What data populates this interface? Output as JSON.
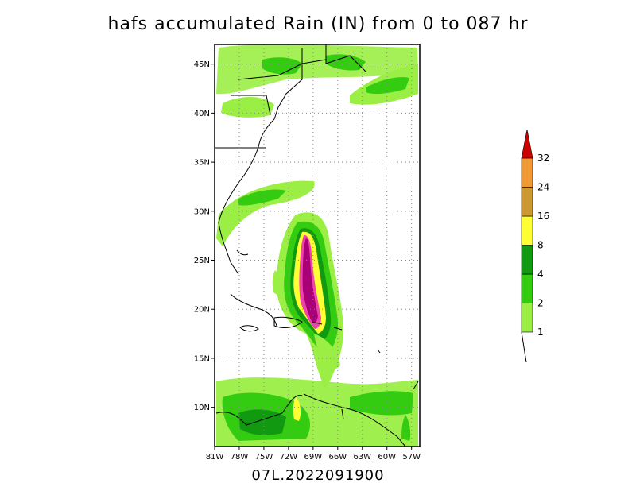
{
  "title": "hafs accumulated Rain (IN) from 0 to 087 hr",
  "subtitle": "07L.2022091900",
  "map": {
    "lon_range": [
      -81,
      -56
    ],
    "lat_range": [
      6,
      47
    ],
    "lat_ticks": [
      {
        "value": 10,
        "label": "10N"
      },
      {
        "value": 15,
        "label": "15N"
      },
      {
        "value": 20,
        "label": "20N"
      },
      {
        "value": 25,
        "label": "25N"
      },
      {
        "value": 30,
        "label": "30N"
      },
      {
        "value": 35,
        "label": "35N"
      },
      {
        "value": 40,
        "label": "40N"
      },
      {
        "value": 45,
        "label": "45N"
      }
    ],
    "lon_ticks": [
      {
        "value": -81,
        "label": "81W"
      },
      {
        "value": -78,
        "label": "78W"
      },
      {
        "value": -75,
        "label": "75W"
      },
      {
        "value": -72,
        "label": "72W"
      },
      {
        "value": -69,
        "label": "69W"
      },
      {
        "value": -66,
        "label": "66W"
      },
      {
        "value": -63,
        "label": "63W"
      },
      {
        "value": -60,
        "label": "60W"
      },
      {
        "value": -57,
        "label": "57W"
      }
    ]
  },
  "colorbar": {
    "levels": [
      {
        "label": "1",
        "color": "#9aee44"
      },
      {
        "label": "2",
        "color": "#33cc11"
      },
      {
        "label": "4",
        "color": "#119911"
      },
      {
        "label": "8",
        "color": "#ffff33"
      },
      {
        "label": "16",
        "color": "#cc9933"
      },
      {
        "label": "24",
        "color": "#ee9933"
      },
      {
        "label": "32",
        "color": "#cc0000"
      }
    ]
  }
}
